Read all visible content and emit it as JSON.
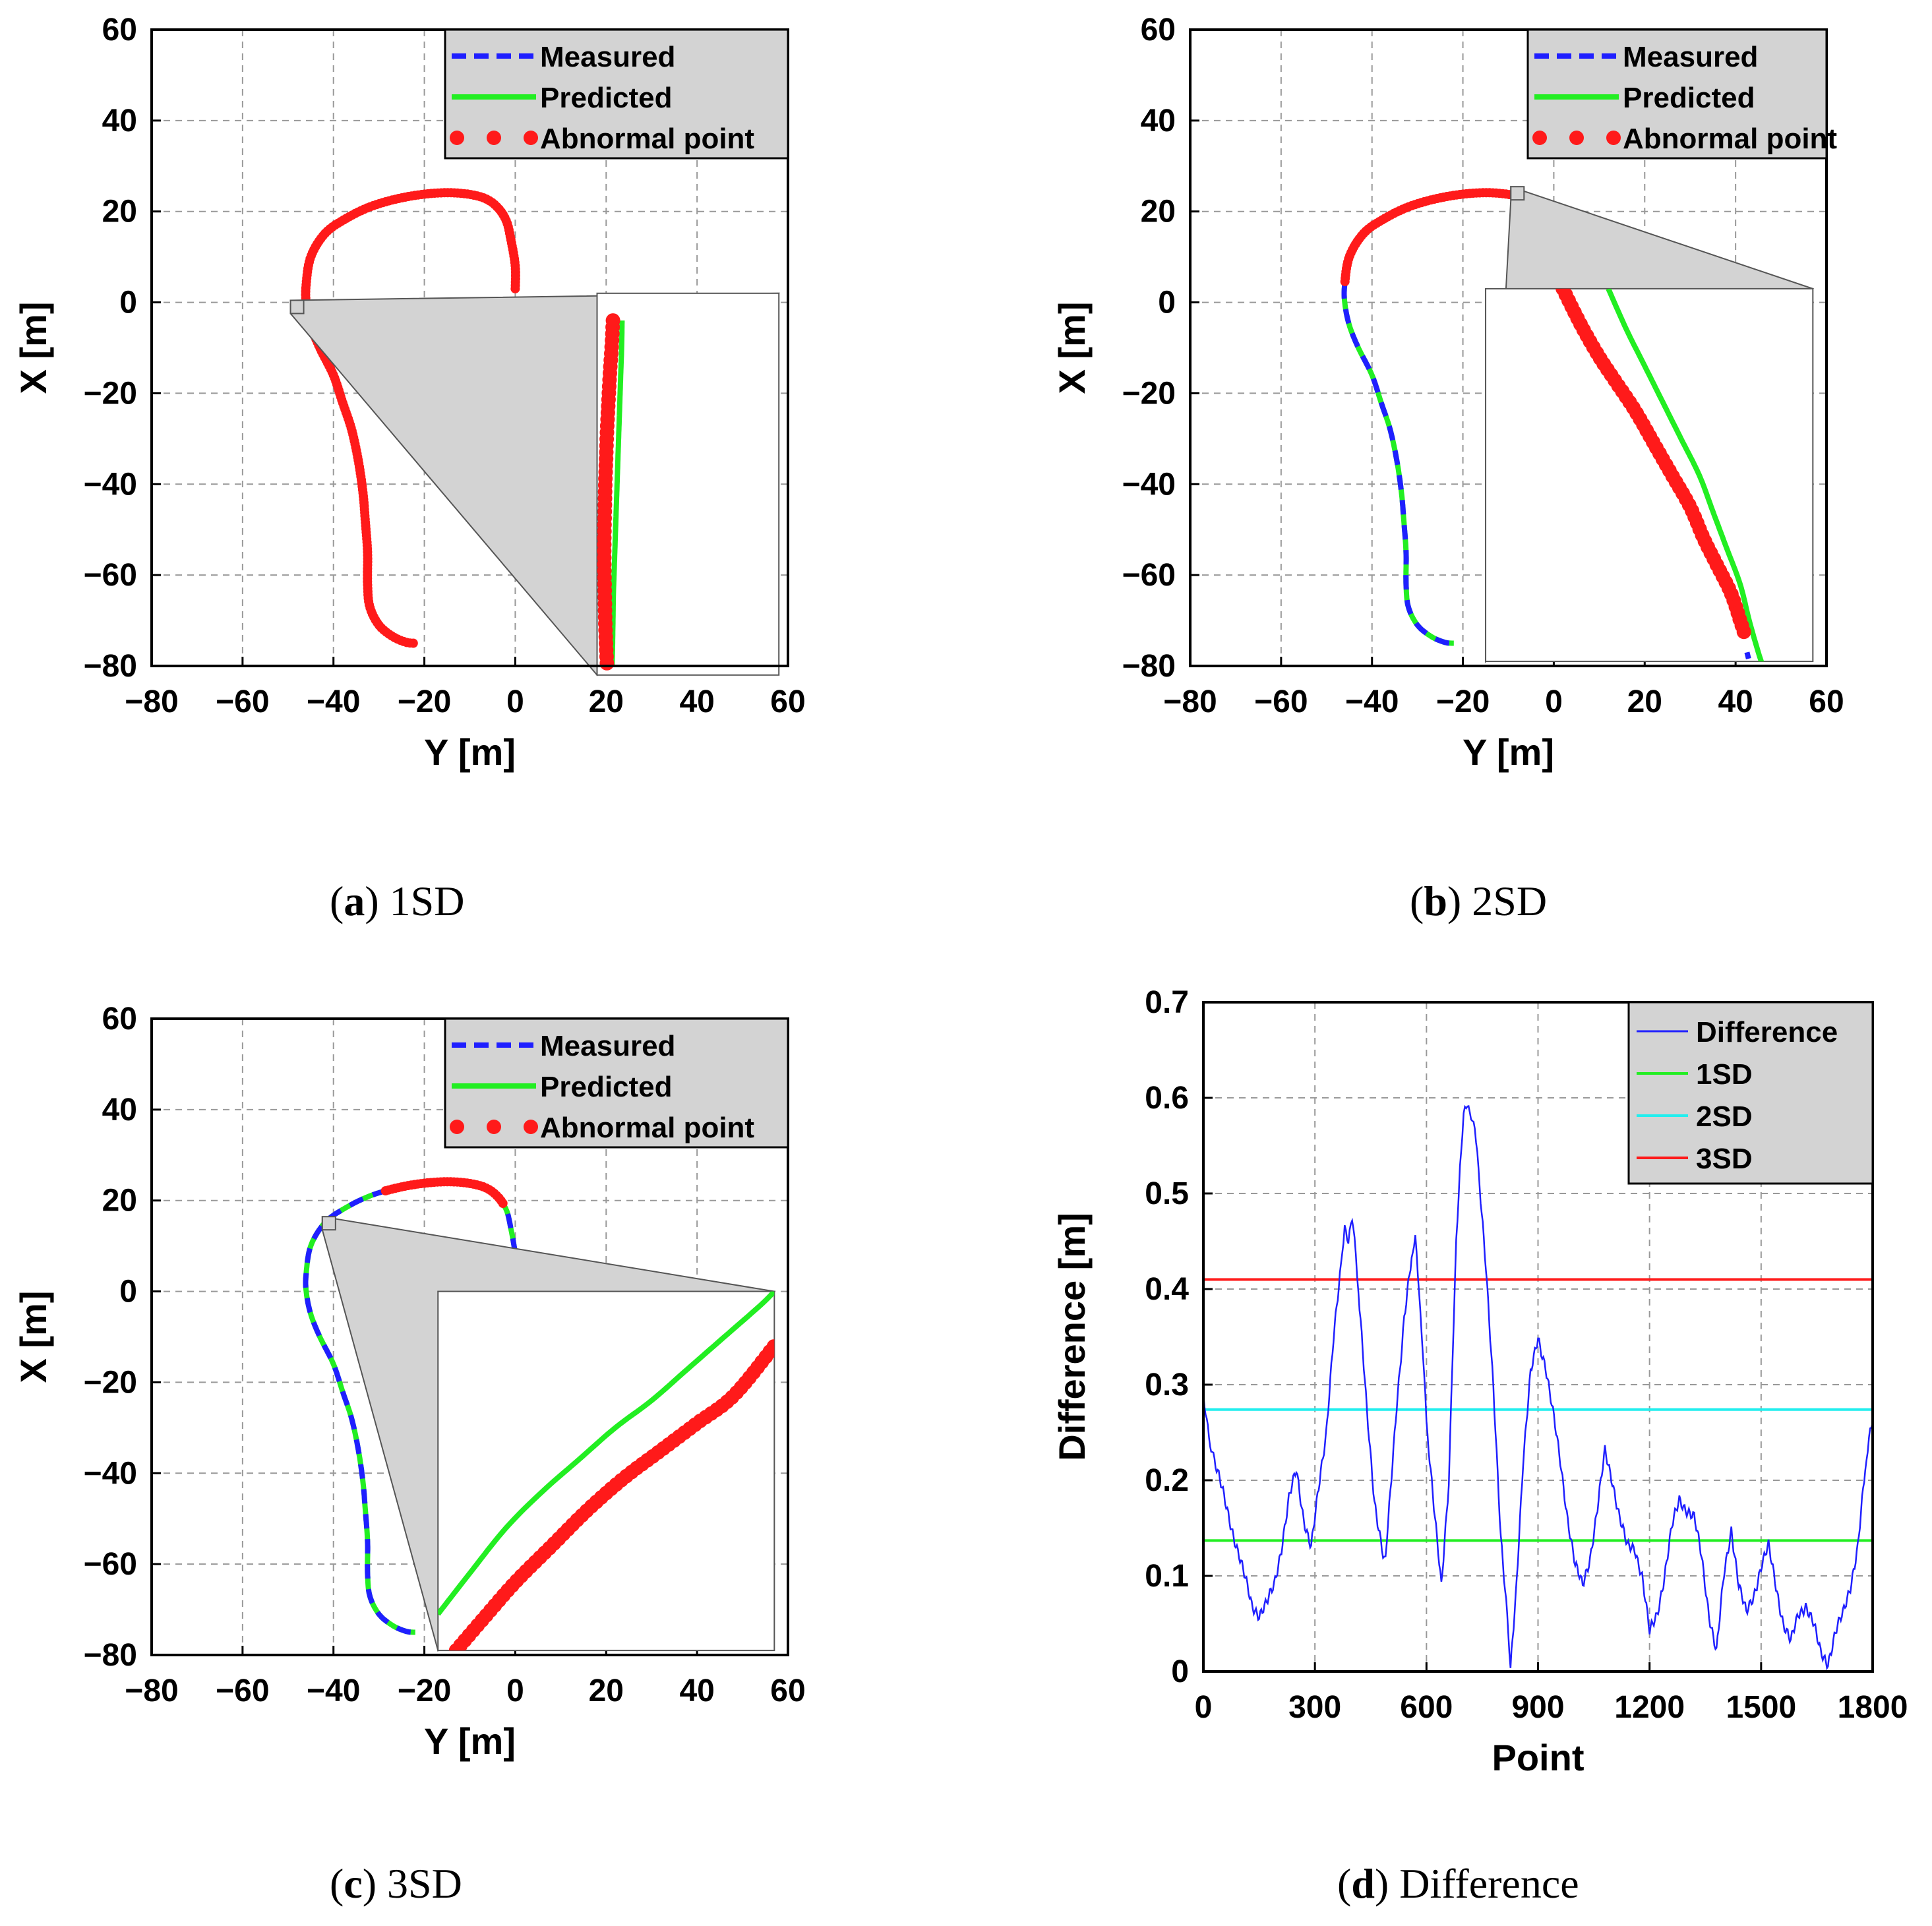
{
  "colors": {
    "measured": "#1f1fff",
    "predicted": "#22ee22",
    "abnormal": "#ff1a1a",
    "difference": "#1f1fff",
    "sd1": "#22ee22",
    "sd2": "#22eeee",
    "sd3": "#ff1a1a",
    "legend_bg": "#d3d3d3",
    "inset_bg": "#d3d3d3"
  },
  "captions": [
    {
      "letter": "a",
      "text": " 1SD"
    },
    {
      "letter": "b",
      "text": " 2SD"
    },
    {
      "letter": "c",
      "text": " 3SD"
    },
    {
      "letter": "d",
      "text": " Difference"
    }
  ],
  "chart_data": [
    {
      "id": "a",
      "type": "line",
      "xlabel": "Y [m]",
      "ylabel": "X [m]",
      "xlim": [
        -80,
        60
      ],
      "ylim": [
        -80,
        60
      ],
      "xticks": [
        -80,
        -60,
        -40,
        -20,
        0,
        20,
        40,
        60
      ],
      "yticks": [
        -80,
        -60,
        -40,
        -20,
        0,
        20,
        40,
        60
      ],
      "xtick_labels": [
        "−80",
        "−60",
        "−40",
        "−20",
        "0",
        "20",
        "40",
        "60"
      ],
      "ytick_labels": [
        "−80",
        "−60",
        "−40",
        "−20",
        "0",
        "20",
        "40",
        "60"
      ],
      "grid": true,
      "legend": [
        "Measured",
        "Predicted",
        "Abnormal point"
      ],
      "legend_position": "top-right",
      "trajectory": [
        [
          0,
          3
        ],
        [
          0,
          8
        ],
        [
          -1,
          14
        ],
        [
          -2,
          18
        ],
        [
          -4,
          21
        ],
        [
          -7,
          23
        ],
        [
          -12,
          24
        ],
        [
          -18,
          24
        ],
        [
          -25,
          23
        ],
        [
          -32,
          21
        ],
        [
          -38,
          18
        ],
        [
          -42,
          15
        ],
        [
          -45,
          10
        ],
        [
          -46,
          4
        ],
        [
          -46,
          0
        ],
        [
          -45,
          -5
        ],
        [
          -43,
          -10
        ],
        [
          -40,
          -16
        ],
        [
          -38,
          -22
        ],
        [
          -36,
          -28
        ],
        [
          -34.5,
          -35
        ],
        [
          -33.5,
          -42
        ],
        [
          -33,
          -48
        ],
        [
          -32.5,
          -55
        ],
        [
          -32.5,
          -62
        ],
        [
          -32,
          -67
        ],
        [
          -30,
          -71
        ],
        [
          -27,
          -73.5
        ],
        [
          -24,
          -74.8
        ],
        [
          -22,
          -75
        ]
      ],
      "abnormal_range": [
        0.0,
        1.0
      ],
      "inset_zoom": [
        -48,
        -1
      ],
      "inset_box": [
        18,
        58,
        -82,
        2
      ],
      "inset_measured": [
        [
          23.5,
          -4
        ],
        [
          23.4,
          -10
        ],
        [
          23.2,
          -16
        ],
        [
          23.0,
          -22
        ],
        [
          22.8,
          -28
        ],
        [
          22.6,
          -34
        ],
        [
          22.4,
          -40
        ],
        [
          22.2,
          -46
        ],
        [
          22.0,
          -52
        ],
        [
          21.8,
          -58
        ],
        [
          21.6,
          -64
        ],
        [
          21.5,
          -70
        ],
        [
          21.4,
          -76
        ],
        [
          21.3,
          -80
        ]
      ],
      "inset_abnormal": [
        [
          21.5,
          -4
        ],
        [
          21.2,
          -10
        ],
        [
          20.8,
          -16
        ],
        [
          20.5,
          -22
        ],
        [
          20.2,
          -28
        ],
        [
          20.0,
          -34
        ],
        [
          19.8,
          -40
        ],
        [
          19.7,
          -46
        ],
        [
          19.6,
          -52
        ],
        [
          19.6,
          -58
        ],
        [
          19.7,
          -64
        ],
        [
          19.8,
          -70
        ],
        [
          20.0,
          -76
        ],
        [
          20.2,
          -80
        ]
      ]
    },
    {
      "id": "b",
      "type": "line",
      "xlabel": "Y [m]",
      "ylabel": "X [m]",
      "xlim": [
        -80,
        60
      ],
      "ylim": [
        -80,
        60
      ],
      "xticks": [
        -80,
        -60,
        -40,
        -20,
        0,
        20,
        40,
        60
      ],
      "yticks": [
        -80,
        -60,
        -40,
        -20,
        0,
        20,
        40,
        60
      ],
      "xtick_labels": [
        "−80",
        "−60",
        "−40",
        "−20",
        "0",
        "20",
        "40",
        "60"
      ],
      "ytick_labels": [
        "−80",
        "−60",
        "−40",
        "−20",
        "0",
        "20",
        "40",
        "60"
      ],
      "grid": true,
      "legend": [
        "Measured",
        "Predicted",
        "Abnormal point"
      ],
      "legend_position": "top-right",
      "trajectory": [
        [
          0,
          3
        ],
        [
          0,
          8
        ],
        [
          -1,
          14
        ],
        [
          -2,
          18
        ],
        [
          -4,
          21
        ],
        [
          -7,
          23
        ],
        [
          -12,
          24
        ],
        [
          -18,
          24
        ],
        [
          -25,
          23
        ],
        [
          -32,
          21
        ],
        [
          -38,
          18
        ],
        [
          -42,
          15
        ],
        [
          -45,
          10
        ],
        [
          -46,
          4
        ],
        [
          -46,
          0
        ],
        [
          -45,
          -5
        ],
        [
          -43,
          -10
        ],
        [
          -40,
          -16
        ],
        [
          -38,
          -22
        ],
        [
          -36,
          -28
        ],
        [
          -34.5,
          -35
        ],
        [
          -33.5,
          -42
        ],
        [
          -33,
          -48
        ],
        [
          -32.5,
          -55
        ],
        [
          -32.5,
          -62
        ],
        [
          -32,
          -67
        ],
        [
          -30,
          -71
        ],
        [
          -27,
          -73.5
        ],
        [
          -24,
          -74.8
        ],
        [
          -22,
          -75
        ]
      ],
      "abnormal_range": [
        0.0,
        0.45
      ],
      "inset_zoom": [
        -8,
        24
      ],
      "inset_box": [
        -15,
        57,
        -79,
        3
      ],
      "inset_measured": [
        [
          12,
          3
        ],
        [
          16,
          -6
        ],
        [
          20,
          -14
        ],
        [
          24,
          -22
        ],
        [
          28,
          -30
        ],
        [
          32,
          -38
        ],
        [
          35,
          -46
        ],
        [
          38,
          -54
        ],
        [
          41,
          -62
        ],
        [
          43,
          -70
        ],
        [
          45,
          -77
        ],
        [
          46,
          -80
        ]
      ],
      "inset_abnormal": [
        [
          2,
          3
        ],
        [
          6,
          -5
        ],
        [
          10,
          -12
        ],
        [
          14,
          -18
        ],
        [
          18,
          -24
        ],
        [
          22,
          -31
        ],
        [
          26,
          -38
        ],
        [
          30,
          -45
        ],
        [
          33,
          -52
        ],
        [
          36,
          -58
        ],
        [
          39,
          -64
        ],
        [
          41,
          -70
        ],
        [
          42,
          -73
        ]
      ],
      "inset_tail_measured": [
        [
          42.5,
          -77
        ],
        [
          43,
          -79
        ]
      ]
    },
    {
      "id": "c",
      "type": "line",
      "xlabel": "Y [m]",
      "ylabel": "X [m]",
      "xlim": [
        -80,
        60
      ],
      "ylim": [
        -80,
        60
      ],
      "xticks": [
        -80,
        -60,
        -40,
        -20,
        0,
        20,
        40,
        60
      ],
      "yticks": [
        -80,
        -60,
        -40,
        -20,
        0,
        20,
        40,
        60
      ],
      "xtick_labels": [
        "−80",
        "−60",
        "−40",
        "−20",
        "0",
        "20",
        "40",
        "60"
      ],
      "ytick_labels": [
        "−80",
        "−60",
        "−40",
        "−20",
        "0",
        "20",
        "40",
        "60"
      ],
      "grid": true,
      "legend": [
        "Measured",
        "Predicted",
        "Abnormal point"
      ],
      "legend_position": "top-right",
      "trajectory": [
        [
          0,
          3
        ],
        [
          0,
          8
        ],
        [
          -1,
          14
        ],
        [
          -2,
          18
        ],
        [
          -4,
          21
        ],
        [
          -7,
          23
        ],
        [
          -12,
          24
        ],
        [
          -18,
          24
        ],
        [
          -25,
          23
        ],
        [
          -32,
          21
        ],
        [
          -38,
          18
        ],
        [
          -42,
          15
        ],
        [
          -45,
          10
        ],
        [
          -46,
          4
        ],
        [
          -46,
          0
        ],
        [
          -45,
          -5
        ],
        [
          -43,
          -10
        ],
        [
          -40,
          -16
        ],
        [
          -38,
          -22
        ],
        [
          -36,
          -28
        ],
        [
          -34.5,
          -35
        ],
        [
          -33.5,
          -42
        ],
        [
          -33,
          -48
        ],
        [
          -32.5,
          -55
        ],
        [
          -32.5,
          -62
        ],
        [
          -32,
          -67
        ],
        [
          -30,
          -71
        ],
        [
          -27,
          -73.5
        ],
        [
          -24,
          -74.8
        ],
        [
          -22,
          -75
        ]
      ],
      "abnormal_range": [
        0.12,
        0.3
      ],
      "inset_zoom": [
        -41,
        15
      ],
      "inset_box": [
        -17,
        57,
        -79,
        0
      ],
      "inset_measured": [
        [
          -17,
          -71
        ],
        [
          -10,
          -62
        ],
        [
          -2,
          -52
        ],
        [
          6,
          -44
        ],
        [
          14,
          -37
        ],
        [
          22,
          -30
        ],
        [
          30,
          -24
        ],
        [
          38,
          -17
        ],
        [
          46,
          -10
        ],
        [
          54,
          -3
        ],
        [
          57,
          0
        ]
      ],
      "inset_abnormal": [
        [
          -13,
          -79
        ],
        [
          -7,
          -72
        ],
        [
          0,
          -64
        ],
        [
          8,
          -56
        ],
        [
          16,
          -48
        ],
        [
          24,
          -41
        ],
        [
          32,
          -35
        ],
        [
          40,
          -29
        ],
        [
          48,
          -23
        ],
        [
          57,
          -12
        ]
      ]
    },
    {
      "id": "d",
      "type": "line",
      "xlabel": "Point",
      "ylabel": "Difference [m]",
      "xlim": [
        0,
        1800
      ],
      "ylim": [
        0,
        0.7
      ],
      "xticks": [
        0,
        300,
        600,
        900,
        1200,
        1500,
        1800
      ],
      "yticks": [
        0,
        0.1,
        0.2,
        0.3,
        0.4,
        0.5,
        0.6,
        0.7
      ],
      "xtick_labels": [
        "0",
        "300",
        "600",
        "900",
        "1200",
        "1500",
        "1800"
      ],
      "ytick_labels": [
        "0",
        "0.1",
        "0.2",
        "0.3",
        "0.4",
        "0.5",
        "0.6",
        "0.7"
      ],
      "grid": true,
      "legend": [
        "Difference",
        "1SD",
        "2SD",
        "3SD"
      ],
      "legend_position": "top-right",
      "thresholds": {
        "sd1": 0.137,
        "sd2": 0.274,
        "sd3": 0.41
      },
      "series": [
        {
          "name": "Difference",
          "x": [
            0,
            15,
            30,
            50,
            70,
            90,
            110,
            130,
            150,
            170,
            190,
            210,
            230,
            250,
            270,
            290,
            310,
            330,
            350,
            370,
            380,
            390,
            400,
            410,
            420,
            440,
            460,
            480,
            490,
            500,
            520,
            540,
            560,
            570,
            580,
            590,
            600,
            620,
            640,
            660,
            670,
            680,
            690,
            700,
            710,
            720,
            730,
            740,
            760,
            780,
            800,
            820,
            826,
            840,
            860,
            880,
            900,
            920,
            940,
            960,
            980,
            1000,
            1020,
            1040,
            1060,
            1080,
            1100,
            1120,
            1140,
            1160,
            1180,
            1200,
            1220,
            1240,
            1260,
            1280,
            1300,
            1320,
            1340,
            1360,
            1380,
            1400,
            1420,
            1440,
            1460,
            1480,
            1500,
            1520,
            1540,
            1560,
            1580,
            1600,
            1620,
            1640,
            1660,
            1680,
            1700,
            1720,
            1740,
            1760,
            1780,
            1790,
            1800
          ],
          "y": [
            0.29,
            0.24,
            0.22,
            0.19,
            0.16,
            0.13,
            0.1,
            0.07,
            0.06,
            0.07,
            0.09,
            0.13,
            0.18,
            0.21,
            0.16,
            0.13,
            0.19,
            0.25,
            0.35,
            0.42,
            0.47,
            0.45,
            0.47,
            0.44,
            0.38,
            0.27,
            0.18,
            0.13,
            0.12,
            0.17,
            0.28,
            0.37,
            0.43,
            0.45,
            0.4,
            0.34,
            0.26,
            0.17,
            0.09,
            0.2,
            0.32,
            0.45,
            0.53,
            0.58,
            0.59,
            0.585,
            0.57,
            0.52,
            0.42,
            0.3,
            0.14,
            0.04,
            0.0,
            0.08,
            0.22,
            0.31,
            0.35,
            0.32,
            0.27,
            0.22,
            0.16,
            0.11,
            0.09,
            0.12,
            0.17,
            0.23,
            0.2,
            0.16,
            0.13,
            0.13,
            0.1,
            0.04,
            0.06,
            0.1,
            0.15,
            0.18,
            0.17,
            0.16,
            0.12,
            0.06,
            0.02,
            0.1,
            0.15,
            0.09,
            0.06,
            0.08,
            0.11,
            0.13,
            0.09,
            0.05,
            0.03,
            0.06,
            0.07,
            0.05,
            0.02,
            0.01,
            0.04,
            0.06,
            0.09,
            0.13,
            0.21,
            0.24,
            0.26
          ]
        }
      ]
    }
  ]
}
